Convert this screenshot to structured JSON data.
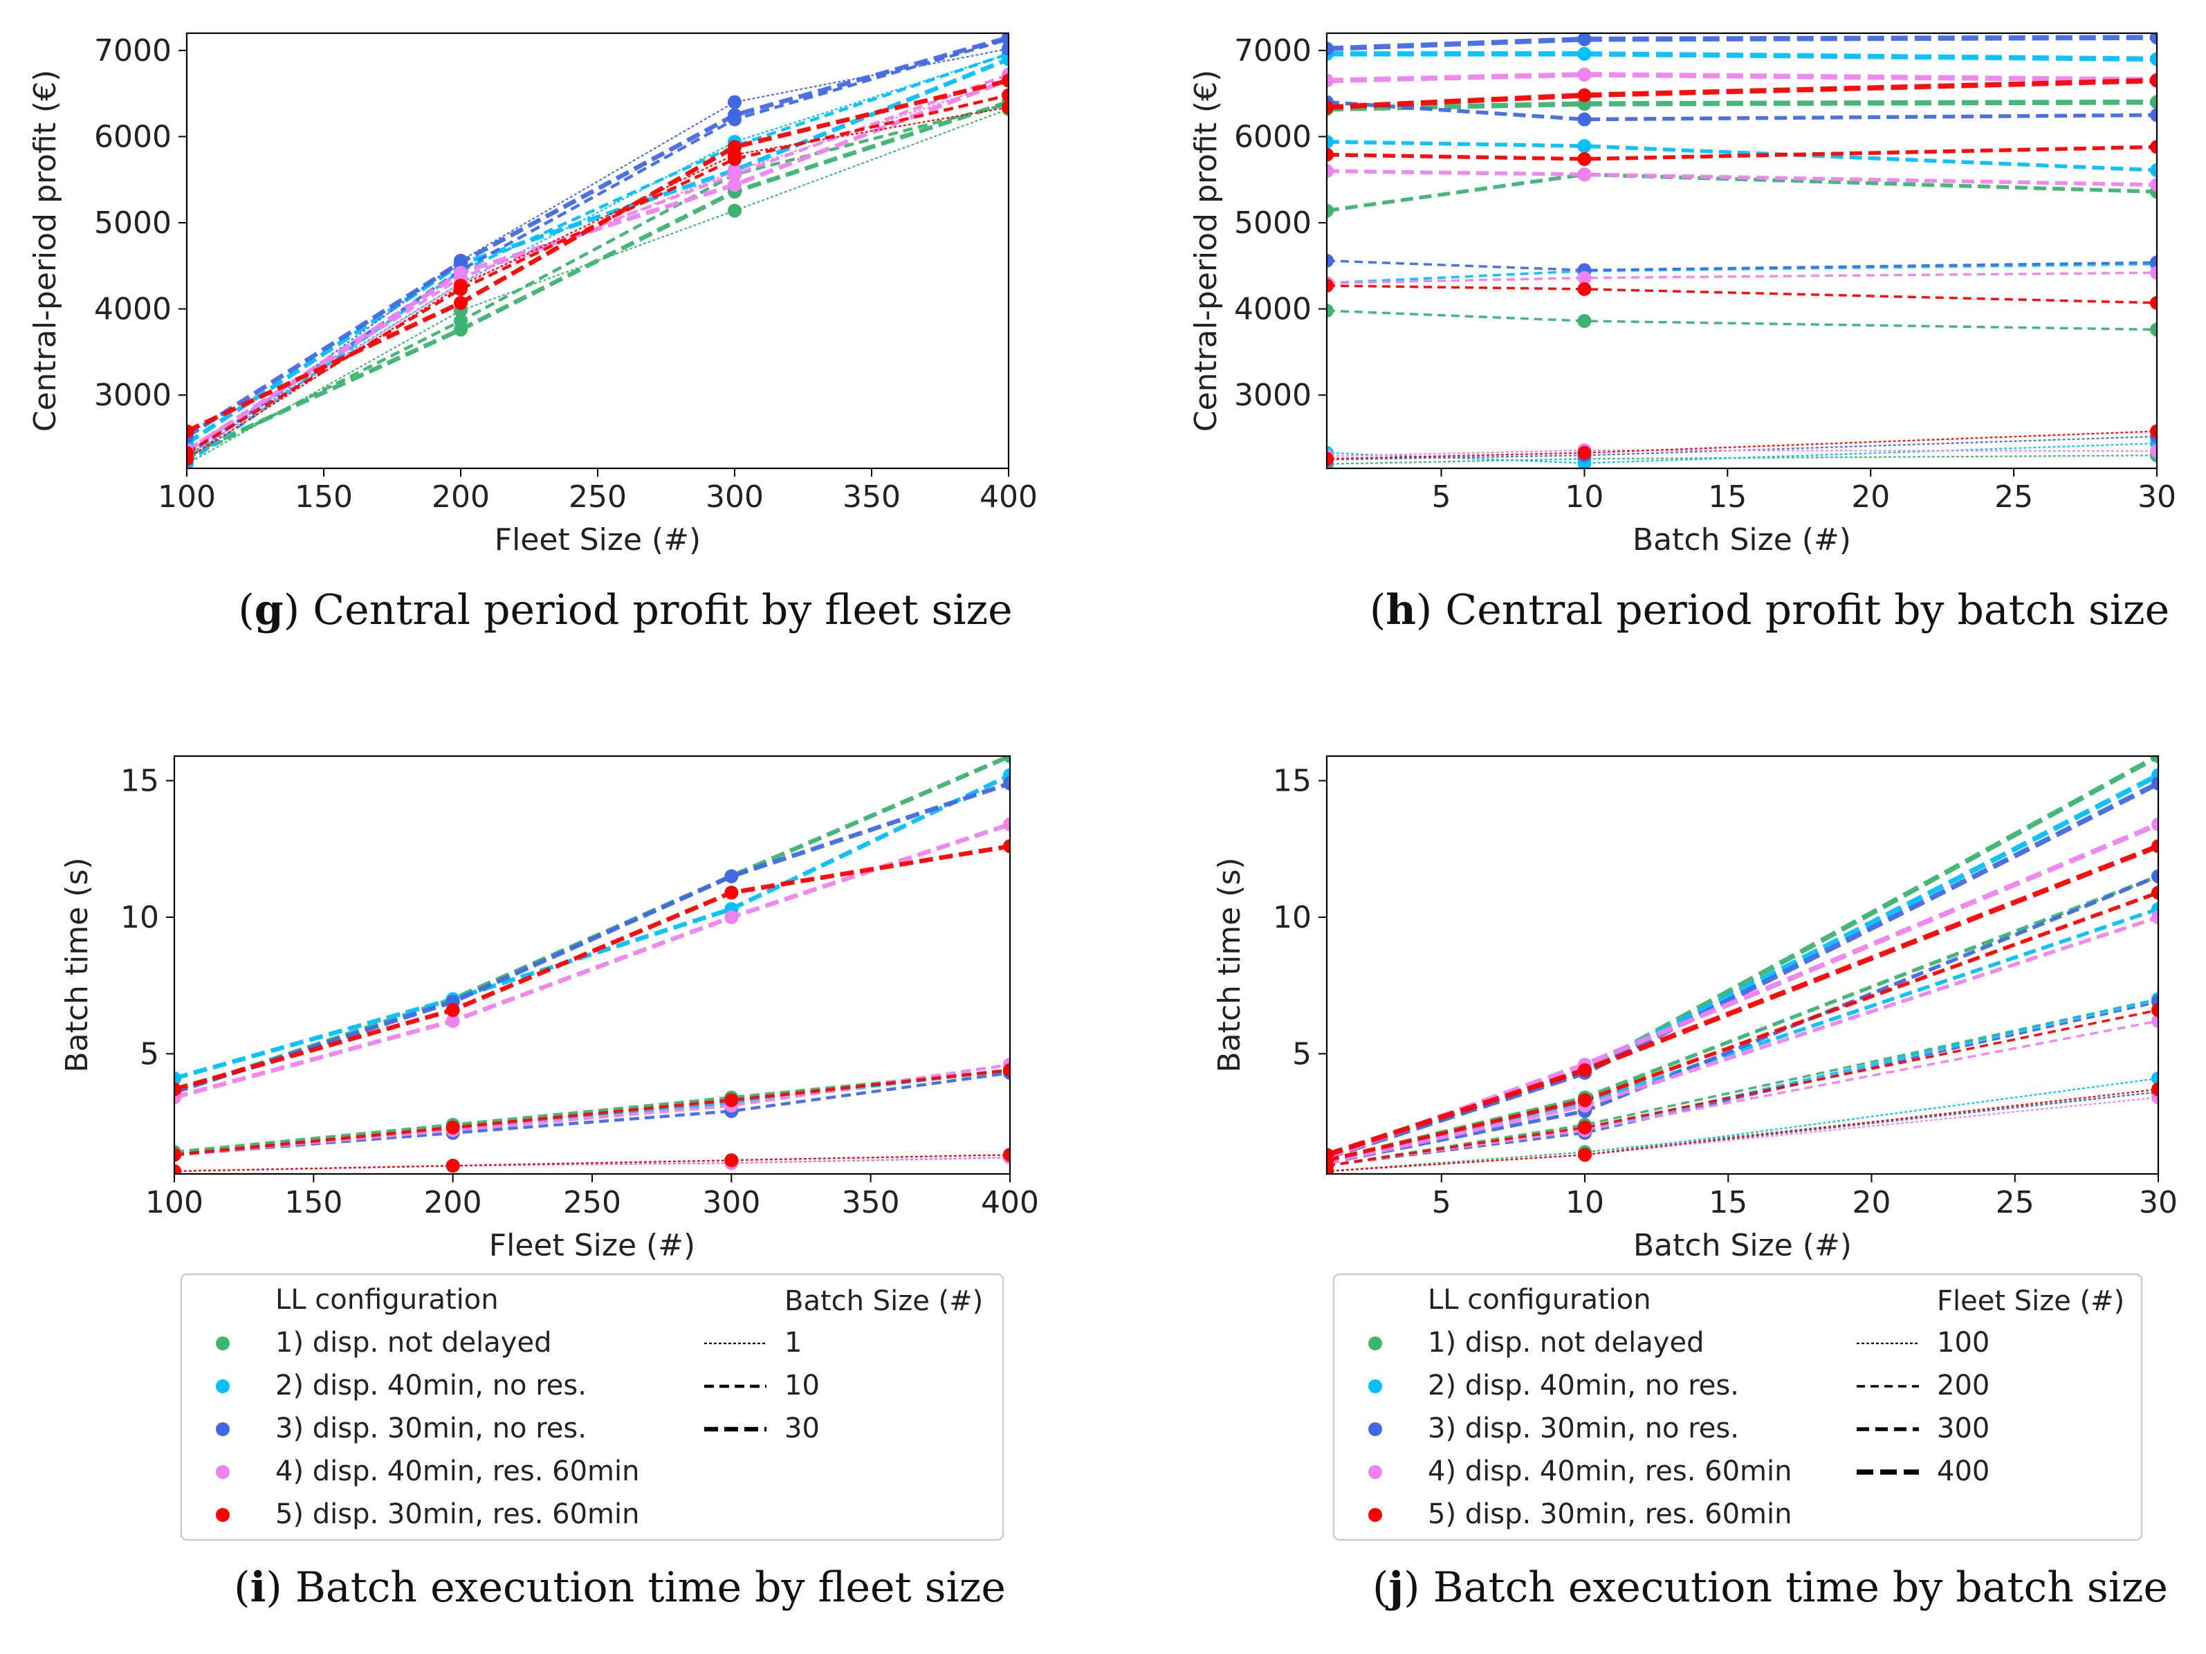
{
  "colors": {
    "c1": "#3cb371",
    "c2": "#00bfff",
    "c3": "#4169e1",
    "c4": "#ee82ee",
    "c5": "#ff0000"
  },
  "config_labels": [
    "1) disp. not delayed",
    "2) disp. 40min, no res.",
    "3) disp. 30min, no res.",
    "4) disp. 40min, res. 60min",
    "5) disp. 30min, res. 60min"
  ],
  "legends": [
    {
      "title_left": "LL configuration",
      "title_right": "Batch Size (#)",
      "style_labels": [
        "1",
        "10",
        "30"
      ]
    },
    {
      "title_left": "LL configuration",
      "title_right": "Fleet Size (#)",
      "style_labels": [
        "100",
        "200",
        "300",
        "400"
      ]
    }
  ],
  "chart_data": [
    {
      "id": "g",
      "type": "line",
      "caption_letter": "g",
      "caption_text": "Central period profit by fleet size",
      "xlabel": "Fleet Size (#)",
      "ylabel": "Central-period profit (€)",
      "x": [
        100,
        200,
        300,
        400
      ],
      "xlim": [
        100,
        400
      ],
      "ylim": [
        2150,
        7200
      ],
      "xticks": [
        "100",
        "150",
        "200",
        "250",
        "300",
        "350",
        "400"
      ],
      "xtick_values": [
        100,
        150,
        200,
        250,
        300,
        350,
        400
      ],
      "yticks": [
        "3000",
        "4000",
        "5000",
        "6000",
        "7000"
      ],
      "ytick_values": [
        3000,
        4000,
        5000,
        6000,
        7000
      ],
      "style_key": "batch",
      "series": [
        {
          "config": 1,
          "style": 1,
          "values": [
            2200,
            3980,
            5140,
            6320
          ]
        },
        {
          "config": 1,
          "style": 10,
          "values": [
            2260,
            3860,
            5560,
            6380
          ]
        },
        {
          "config": 1,
          "style": 30,
          "values": [
            2300,
            3760,
            5360,
            6400
          ]
        },
        {
          "config": 2,
          "style": 1,
          "values": [
            2330,
            4300,
            5940,
            6960
          ]
        },
        {
          "config": 2,
          "style": 10,
          "values": [
            2210,
            4440,
            5890,
            6960
          ]
        },
        {
          "config": 2,
          "style": 30,
          "values": [
            2440,
            4520,
            5610,
            6900
          ]
        },
        {
          "config": 3,
          "style": 1,
          "values": [
            2250,
            4560,
            6400,
            7020
          ]
        },
        {
          "config": 3,
          "style": 10,
          "values": [
            2300,
            4450,
            6200,
            7130
          ]
        },
        {
          "config": 3,
          "style": 30,
          "values": [
            2520,
            4540,
            6250,
            7150
          ]
        },
        {
          "config": 4,
          "style": 1,
          "values": [
            2290,
            4300,
            5600,
            6650
          ]
        },
        {
          "config": 4,
          "style": 10,
          "values": [
            2360,
            4360,
            5560,
            6720
          ]
        },
        {
          "config": 4,
          "style": 30,
          "values": [
            2350,
            4420,
            5440,
            6660
          ]
        },
        {
          "config": 5,
          "style": 1,
          "values": [
            2260,
            4270,
            5790,
            6340
          ]
        },
        {
          "config": 5,
          "style": 10,
          "values": [
            2330,
            4230,
            5740,
            6480
          ]
        },
        {
          "config": 5,
          "style": 30,
          "values": [
            2580,
            4070,
            5880,
            6650
          ]
        }
      ]
    },
    {
      "id": "h",
      "type": "line",
      "caption_letter": "h",
      "caption_text": "Central period profit by batch size",
      "xlabel": "Batch Size (#)",
      "ylabel": "Central-period profit (€)",
      "x": [
        1,
        10,
        30
      ],
      "xlim": [
        1,
        30
      ],
      "ylim": [
        2150,
        7200
      ],
      "xticks": [
        "5",
        "10",
        "15",
        "20",
        "25",
        "30"
      ],
      "xtick_values": [
        5,
        10,
        15,
        20,
        25,
        30
      ],
      "yticks": [
        "3000",
        "4000",
        "5000",
        "6000",
        "7000"
      ],
      "ytick_values": [
        3000,
        4000,
        5000,
        6000,
        7000
      ],
      "style_key": "fleet",
      "series": [
        {
          "config": 1,
          "style": 100,
          "values": [
            2200,
            2260,
            2300
          ]
        },
        {
          "config": 1,
          "style": 200,
          "values": [
            3980,
            3860,
            3760
          ]
        },
        {
          "config": 1,
          "style": 300,
          "values": [
            5140,
            5560,
            5360
          ]
        },
        {
          "config": 1,
          "style": 400,
          "values": [
            6320,
            6380,
            6400
          ]
        },
        {
          "config": 2,
          "style": 100,
          "values": [
            2330,
            2210,
            2440
          ]
        },
        {
          "config": 2,
          "style": 200,
          "values": [
            4300,
            4440,
            4520
          ]
        },
        {
          "config": 2,
          "style": 300,
          "values": [
            5940,
            5890,
            5610
          ]
        },
        {
          "config": 2,
          "style": 400,
          "values": [
            6960,
            6960,
            6900
          ]
        },
        {
          "config": 3,
          "style": 100,
          "values": [
            2250,
            2300,
            2520
          ]
        },
        {
          "config": 3,
          "style": 200,
          "values": [
            4560,
            4450,
            4540
          ]
        },
        {
          "config": 3,
          "style": 300,
          "values": [
            6400,
            6200,
            6250
          ]
        },
        {
          "config": 3,
          "style": 400,
          "values": [
            7020,
            7130,
            7150
          ]
        },
        {
          "config": 4,
          "style": 100,
          "values": [
            2290,
            2360,
            2350
          ]
        },
        {
          "config": 4,
          "style": 200,
          "values": [
            4300,
            4360,
            4420
          ]
        },
        {
          "config": 4,
          "style": 300,
          "values": [
            5600,
            5560,
            5440
          ]
        },
        {
          "config": 4,
          "style": 400,
          "values": [
            6650,
            6720,
            6660
          ]
        },
        {
          "config": 5,
          "style": 100,
          "values": [
            2260,
            2330,
            2580
          ]
        },
        {
          "config": 5,
          "style": 200,
          "values": [
            4270,
            4230,
            4070
          ]
        },
        {
          "config": 5,
          "style": 300,
          "values": [
            5790,
            5740,
            5880
          ]
        },
        {
          "config": 5,
          "style": 400,
          "values": [
            6340,
            6480,
            6650
          ]
        }
      ]
    },
    {
      "id": "i",
      "type": "line",
      "caption_letter": "i",
      "caption_text": "Batch execution time by fleet size",
      "xlabel": "Fleet Size (#)",
      "ylabel": "Batch time (s)",
      "x": [
        100,
        200,
        300,
        400
      ],
      "xlim": [
        100,
        400
      ],
      "ylim": [
        0.6,
        15.9
      ],
      "xticks": [
        "100",
        "150",
        "200",
        "250",
        "300",
        "350",
        "400"
      ],
      "xtick_values": [
        100,
        150,
        200,
        250,
        300,
        350,
        400
      ],
      "yticks": [
        "5",
        "10",
        "15"
      ],
      "ytick_values": [
        5,
        10,
        15
      ],
      "style_key": "batch",
      "series": [
        {
          "config": 1,
          "style": 1,
          "values": [
            0.7,
            0.9,
            1.1,
            1.3
          ]
        },
        {
          "config": 1,
          "style": 10,
          "values": [
            1.4,
            2.4,
            3.4,
            4.4
          ]
        },
        {
          "config": 1,
          "style": 30,
          "values": [
            3.6,
            7.0,
            11.5,
            15.9
          ]
        },
        {
          "config": 2,
          "style": 1,
          "values": [
            0.7,
            0.9,
            1.0,
            1.2
          ]
        },
        {
          "config": 2,
          "style": 10,
          "values": [
            1.3,
            2.2,
            3.2,
            4.4
          ]
        },
        {
          "config": 2,
          "style": 30,
          "values": [
            4.1,
            7.0,
            10.3,
            15.2
          ]
        },
        {
          "config": 3,
          "style": 1,
          "values": [
            0.7,
            0.9,
            1.0,
            1.2
          ]
        },
        {
          "config": 3,
          "style": 10,
          "values": [
            1.3,
            2.1,
            2.9,
            4.3
          ]
        },
        {
          "config": 3,
          "style": 30,
          "values": [
            3.6,
            6.9,
            11.5,
            14.9
          ]
        },
        {
          "config": 4,
          "style": 1,
          "values": [
            0.7,
            0.9,
            1.0,
            1.2
          ]
        },
        {
          "config": 4,
          "style": 10,
          "values": [
            1.3,
            2.2,
            3.1,
            4.6
          ]
        },
        {
          "config": 4,
          "style": 30,
          "values": [
            3.4,
            6.2,
            10.0,
            13.4
          ]
        },
        {
          "config": 5,
          "style": 1,
          "values": [
            0.7,
            0.9,
            1.1,
            1.3
          ]
        },
        {
          "config": 5,
          "style": 10,
          "values": [
            1.3,
            2.3,
            3.3,
            4.4
          ]
        },
        {
          "config": 5,
          "style": 30,
          "values": [
            3.7,
            6.6,
            10.9,
            12.6
          ]
        }
      ]
    },
    {
      "id": "j",
      "type": "line",
      "caption_letter": "j",
      "caption_text": "Batch execution time by batch size",
      "xlabel": "Batch Size (#)",
      "ylabel": "Batch time (s)",
      "x": [
        1,
        10,
        30
      ],
      "xlim": [
        1,
        30
      ],
      "ylim": [
        0.6,
        15.9
      ],
      "xticks": [
        "5",
        "10",
        "15",
        "20",
        "25",
        "30"
      ],
      "xtick_values": [
        5,
        10,
        15,
        20,
        25,
        30
      ],
      "yticks": [
        "5",
        "10",
        "15"
      ],
      "ytick_values": [
        5,
        10,
        15
      ],
      "style_key": "fleet",
      "series": [
        {
          "config": 1,
          "style": 100,
          "values": [
            0.7,
            1.4,
            3.6
          ]
        },
        {
          "config": 1,
          "style": 200,
          "values": [
            0.9,
            2.4,
            7.0
          ]
        },
        {
          "config": 1,
          "style": 300,
          "values": [
            1.1,
            3.4,
            11.5
          ]
        },
        {
          "config": 1,
          "style": 400,
          "values": [
            1.3,
            4.4,
            15.9
          ]
        },
        {
          "config": 2,
          "style": 100,
          "values": [
            0.7,
            1.3,
            4.1
          ]
        },
        {
          "config": 2,
          "style": 200,
          "values": [
            0.9,
            2.2,
            7.0
          ]
        },
        {
          "config": 2,
          "style": 300,
          "values": [
            1.0,
            3.2,
            10.3
          ]
        },
        {
          "config": 2,
          "style": 400,
          "values": [
            1.2,
            4.4,
            15.2
          ]
        },
        {
          "config": 3,
          "style": 100,
          "values": [
            0.7,
            1.3,
            3.6
          ]
        },
        {
          "config": 3,
          "style": 200,
          "values": [
            0.9,
            2.1,
            6.9
          ]
        },
        {
          "config": 3,
          "style": 300,
          "values": [
            1.0,
            2.9,
            11.5
          ]
        },
        {
          "config": 3,
          "style": 400,
          "values": [
            1.2,
            4.3,
            14.9
          ]
        },
        {
          "config": 4,
          "style": 100,
          "values": [
            0.7,
            1.3,
            3.4
          ]
        },
        {
          "config": 4,
          "style": 200,
          "values": [
            0.9,
            2.2,
            6.2
          ]
        },
        {
          "config": 4,
          "style": 300,
          "values": [
            1.0,
            3.1,
            10.0
          ]
        },
        {
          "config": 4,
          "style": 400,
          "values": [
            1.2,
            4.6,
            13.4
          ]
        },
        {
          "config": 5,
          "style": 100,
          "values": [
            0.7,
            1.3,
            3.7
          ]
        },
        {
          "config": 5,
          "style": 200,
          "values": [
            0.9,
            2.3,
            6.6
          ]
        },
        {
          "config": 5,
          "style": 300,
          "values": [
            1.1,
            3.3,
            10.9
          ]
        },
        {
          "config": 5,
          "style": 400,
          "values": [
            1.3,
            4.4,
            12.6
          ]
        }
      ]
    }
  ]
}
